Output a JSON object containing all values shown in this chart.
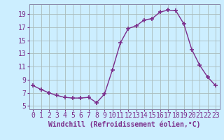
{
  "x": [
    0,
    1,
    2,
    3,
    4,
    5,
    6,
    7,
    8,
    9,
    10,
    11,
    12,
    13,
    14,
    15,
    16,
    17,
    18,
    19,
    20,
    21,
    22,
    23
  ],
  "y": [
    8.1,
    7.5,
    7.0,
    6.6,
    6.3,
    6.2,
    6.2,
    6.3,
    5.5,
    6.8,
    10.5,
    14.6,
    16.8,
    17.2,
    18.1,
    18.3,
    19.3,
    19.6,
    19.5,
    17.5,
    13.6,
    11.2,
    9.4,
    8.1
  ],
  "line_color": "#7b2d8b",
  "marker": "+",
  "marker_size": 5,
  "bg_color": "#cceeff",
  "grid_color": "#aabbbb",
  "xlabel": "Windchill (Refroidissement éolien,°C)",
  "xlabel_fontsize": 7,
  "tick_fontsize": 7,
  "ylim": [
    4.5,
    20.5
  ],
  "yticks": [
    5,
    7,
    9,
    11,
    13,
    15,
    17,
    19
  ],
  "xticks": [
    0,
    1,
    2,
    3,
    4,
    5,
    6,
    7,
    8,
    9,
    10,
    11,
    12,
    13,
    14,
    15,
    16,
    17,
    18,
    19,
    20,
    21,
    22,
    23
  ],
  "line_width": 1.0,
  "spine_color": "#8888aa"
}
